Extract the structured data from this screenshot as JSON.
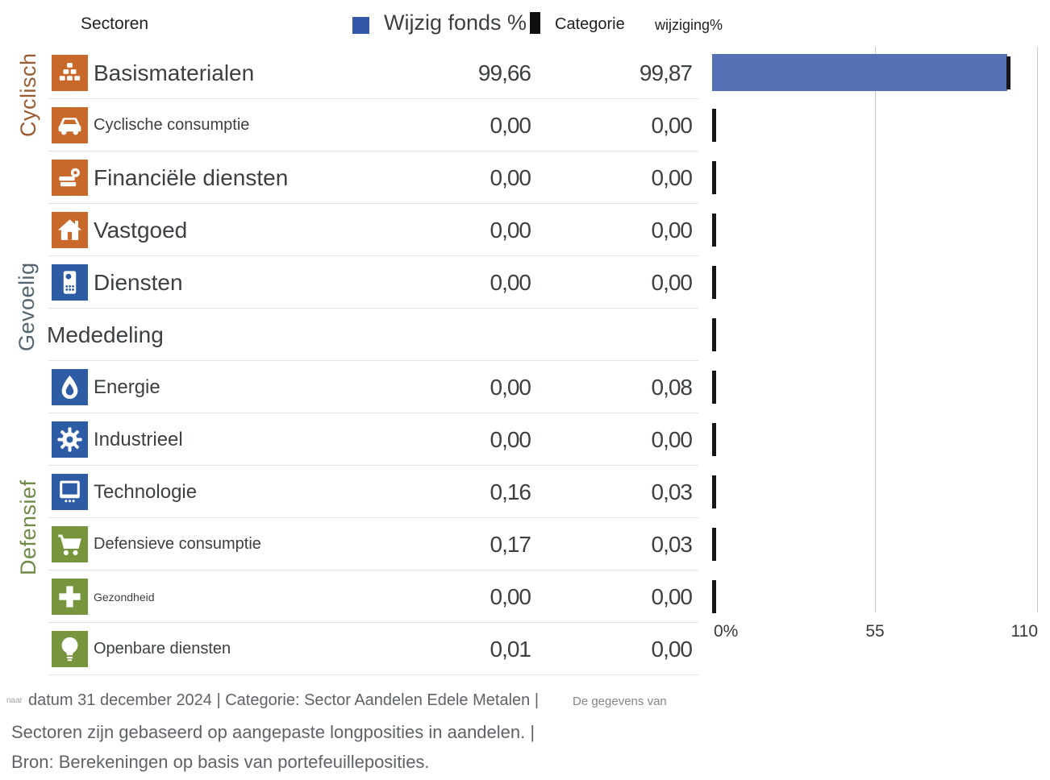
{
  "header": {
    "sectoren": "Sectoren",
    "fund_legend": "Wijzig fonds %",
    "categorie": "Categorie",
    "wijziging": "wijziging%"
  },
  "group_labels": [
    {
      "label": "Cyclisch",
      "color": "#9a5c33"
    },
    {
      "label": "Gevoelig",
      "color": "#536570"
    },
    {
      "label": "Defensief",
      "color": "#6e8b4a"
    }
  ],
  "rows": [
    {
      "label": "Basismaterialen",
      "icon": "basic-materials-icon",
      "icon_color": "#c8692b",
      "fund": "99,66",
      "category": "99,87",
      "fund_num": 99.66,
      "cat_num": 99.87,
      "size": "lg"
    },
    {
      "label": "Cyclische consumptie",
      "icon": "car-icon",
      "icon_color": "#c8692b",
      "fund": "0,00",
      "category": "0,00",
      "fund_num": 0,
      "cat_num": 0,
      "size": "sm"
    },
    {
      "label": "Financiële diensten",
      "icon": "financial-services-icon",
      "icon_color": "#c8692b",
      "fund": "0,00",
      "category": "0,00",
      "fund_num": 0,
      "cat_num": 0,
      "size": "lg"
    },
    {
      "label": "Vastgoed",
      "icon": "house-icon",
      "icon_color": "#c8692b",
      "fund": "0,00",
      "category": "0,00",
      "fund_num": 0,
      "cat_num": 0,
      "size": "lg"
    },
    {
      "label": "Diensten",
      "icon": "phone-icon",
      "icon_color": "#2d5ba4",
      "fund": "0,00",
      "category": "0,00",
      "fund_num": 0,
      "cat_num": 0,
      "size": "lg"
    },
    {
      "label": "Mededeling",
      "icon": null,
      "icon_color": null,
      "fund": "",
      "category": "",
      "fund_num": null,
      "cat_num": 0,
      "size": "lg"
    },
    {
      "label": "Energie",
      "icon": "flame-icon",
      "icon_color": "#2d5ba4",
      "fund": "0,00",
      "category": "0,08",
      "fund_num": 0,
      "cat_num": 0.08,
      "size": "md"
    },
    {
      "label": "Industrieel",
      "icon": "gear-icon",
      "icon_color": "#2d5ba4",
      "fund": "0,00",
      "category": "0,00",
      "fund_num": 0,
      "cat_num": 0,
      "size": "md"
    },
    {
      "label": "Technologie",
      "icon": "monitor-icon",
      "icon_color": "#2d5ba4",
      "fund": "0,16",
      "category": "0,03",
      "fund_num": 0.16,
      "cat_num": 0.03,
      "size": "md"
    },
    {
      "label": "Defensieve consumptie",
      "icon": "shopping-cart-icon",
      "icon_color": "#77953c",
      "fund": "0,17",
      "category": "0,03",
      "fund_num": 0.17,
      "cat_num": 0.03,
      "size": "sm"
    },
    {
      "label": "Gezondheid",
      "icon": "plus-cross-icon",
      "icon_color": "#77953c",
      "fund": "0,00",
      "category": "0,00",
      "fund_num": 0,
      "cat_num": 0,
      "size": "xs"
    },
    {
      "label": "Openbare diensten",
      "icon": "lightbulb-icon",
      "icon_color": "#77953c",
      "fund": "0,01",
      "category": "0,00",
      "fund_num": 0.01,
      "cat_num": 0,
      "size": "sm"
    }
  ],
  "axis": {
    "tick0": "0%",
    "tick1": "55",
    "tick2": "110"
  },
  "footer": {
    "prefix_small": "naar",
    "line1": "datum 31 december 2024 | Categorie: Sector Aandelen Edele Metalen |",
    "line1_suffix": "De gegevens van",
    "line2": "Sectoren zijn gebaseerd op aangepaste longposities in aandelen. |",
    "line3": "Bron: Berekeningen op basis van portefeuilleposities."
  },
  "colors": {
    "bar_blue": "#5571b5",
    "legend_blue": "#3457a7",
    "tick_black": "#161616",
    "orange": "#c8692b",
    "blue": "#2d5ba4",
    "green": "#77953c"
  },
  "chart_data": {
    "type": "bar",
    "orientation": "horizontal",
    "categories": [
      "Basismaterialen",
      "Cyclische consumptie",
      "Financiële diensten",
      "Vastgoed",
      "Diensten",
      "Mededeling",
      "Energie",
      "Industrieel",
      "Technologie",
      "Defensieve consumptie",
      "Gezondheid",
      "Openbare diensten"
    ],
    "series": [
      {
        "name": "Wijzig fonds %",
        "style": "bar",
        "color": "#5571b5",
        "values": [
          99.66,
          0,
          0,
          0,
          0,
          null,
          0,
          0,
          0.16,
          0.17,
          0,
          0.01
        ]
      },
      {
        "name": "Categorie wijziging%",
        "style": "marker",
        "color": "#161616",
        "values": [
          99.87,
          0,
          0,
          0,
          0,
          0,
          0.08,
          0,
          0.03,
          0.03,
          0,
          0
        ]
      }
    ],
    "xlim": [
      0,
      110
    ],
    "tick_labels": [
      "0%",
      "55",
      "110"
    ],
    "gridlines_at": [
      55,
      110
    ],
    "legend_position": "top"
  }
}
